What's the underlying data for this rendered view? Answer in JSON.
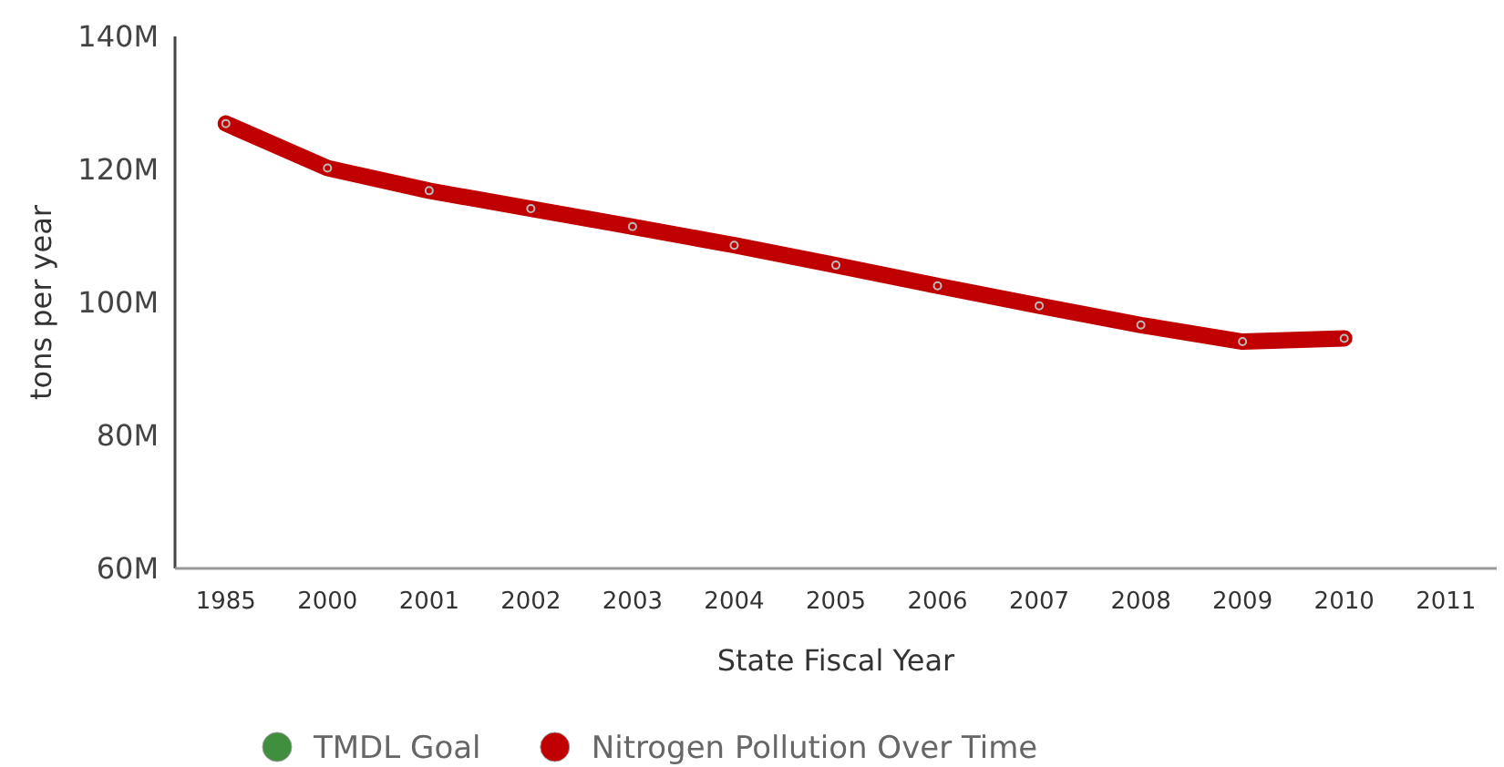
{
  "chart_data": {
    "type": "line",
    "xlabel": "State Fiscal Year",
    "ylabel": "tons per year",
    "categories": [
      "1985",
      "2000",
      "2001",
      "2002",
      "2003",
      "2004",
      "2005",
      "2006",
      "2007",
      "2008",
      "2009",
      "2010",
      "2011"
    ],
    "series": [
      {
        "name": "TMDL Goal",
        "color": "#3f8f3f",
        "values": [
          null,
          null,
          null,
          null,
          null,
          null,
          null,
          null,
          null,
          null,
          null,
          null,
          null
        ]
      },
      {
        "name": "Nitrogen Pollution Over Time",
        "color": "#c00000",
        "values": [
          126.9,
          120.2,
          116.8,
          114.1,
          111.4,
          108.6,
          105.6,
          102.5,
          99.5,
          96.6,
          94.1,
          94.6,
          null
        ]
      }
    ],
    "ylim": [
      60,
      140
    ],
    "yticks": [
      {
        "value": 60,
        "label": "60M"
      },
      {
        "value": 80,
        "label": "80M"
      },
      {
        "value": 100,
        "label": "100M"
      },
      {
        "value": 120,
        "label": "120M"
      },
      {
        "value": 140,
        "label": "140M"
      }
    ],
    "grid": false,
    "legend": "bottom",
    "marker": "circle",
    "line_style": "solid"
  }
}
